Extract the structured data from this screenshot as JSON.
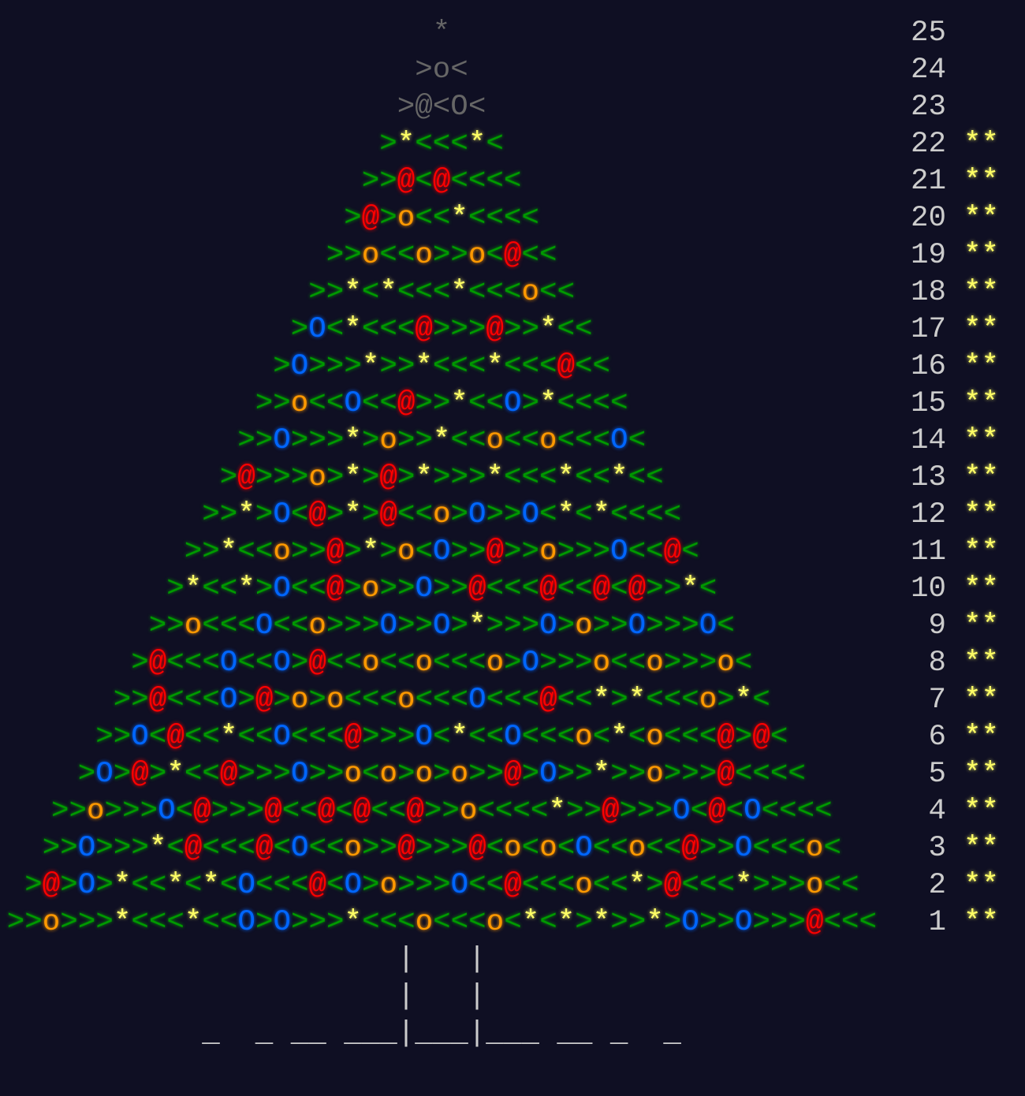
{
  "rows": [
    {
      "day": "25",
      "tree": "*"
    },
    {
      "day": "24",
      "tree": ">o<"
    },
    {
      "day": "23",
      "tree": ">@<O<"
    },
    {
      "day": "22",
      "tree": ">*<<<*<",
      "stars": "**"
    },
    {
      "day": "21",
      "tree": ">>@<@<<<<",
      "stars": "**"
    },
    {
      "day": "20",
      "tree": ">@>o<<*<<<<",
      "stars": "**"
    },
    {
      "day": "19",
      "tree": ">>o<<o>>o<@<<",
      "stars": "**"
    },
    {
      "day": "18",
      "tree": ">>*<*<<<*<<<o<<",
      "stars": "**"
    },
    {
      "day": "17",
      "tree": ">O<*<<<@>>>@>>*<<",
      "stars": "**"
    },
    {
      "day": "16",
      "tree": ">O>>>*>>*<<<*<<<@<<",
      "stars": "**"
    },
    {
      "day": "15",
      "tree": ">>o<<O<<@>>*<<O>*<<<<",
      "stars": "**"
    },
    {
      "day": "14",
      "tree": ">>O>>>*>o>>*<<o<<o<<<O<",
      "stars": "**"
    },
    {
      "day": "13",
      "tree": ">@>>>o>*>@>*>>>*<<<*<<*<<",
      "stars": "**"
    },
    {
      "day": "12",
      "tree": ">>*>O<@>*>@<<o>O>>O<*<*<<<<",
      "stars": "**"
    },
    {
      "day": "11",
      "tree": ">>*<<o>>@>*>o<O>>@>>o>>>O<<@<",
      "stars": "**"
    },
    {
      "day": "10",
      "tree": ">*<<*>O<<@>o>>O>>@<<<@<<@<@>>*<",
      "stars": "**"
    },
    {
      "day": "9",
      "tree": ">>o<<<O<<o>>>O>>O>*>>>O>o>>O>>>O<",
      "stars": "**"
    },
    {
      "day": "8",
      "tree": ">@<<<O<<O>@<<o<<o<<<o>O>>>o<<o>>>o<",
      "stars": "**"
    },
    {
      "day": "7",
      "tree": ">>@<<<O>@>o>o<<<o<<<O<<<@<<*>*<<<o>*<",
      "stars": "**"
    },
    {
      "day": "6",
      "tree": ">>O<@<<*<<O<<<@>>>O<*<<O<<<o<*<o<<<@>@<",
      "stars": "**"
    },
    {
      "day": "5",
      "tree": ">O>@>*<<@>>>O>>o<o>o>o>>@>O>>*>>o>>>@<<<<",
      "stars": "**"
    },
    {
      "day": "4",
      "tree": ">>o>>>O<@>>>@<<@<@<<@>>o<<<<*>>@>>>O<@<O<<<<",
      "stars": "**"
    },
    {
      "day": "3",
      "tree": ">>O>>>*<@<<<@<O<<o>>@>>>@<o<o<O<<o<<@>>O<<<o<",
      "stars": "**"
    },
    {
      "day": "2",
      "tree": ">@>O>*<<*<*<O<<<@<O>o>>>O<<@<<<o<<*>@<<<*>>>o<<",
      "stars": "**"
    },
    {
      "day": "1",
      "tree": ">>o>>>*<<<*<<O>O>>>*<<<o<<<o<*<*>*>>*>O>>O>>>@<<<",
      "stars": "**"
    }
  ],
  "trunk": [
    "|   |",
    "|   |"
  ],
  "ground": "_  _ __ ___|___|___ __ _  _"
}
